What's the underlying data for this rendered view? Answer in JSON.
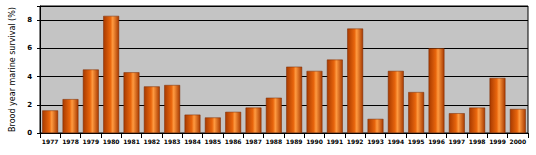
{
  "chart_data": {
    "type": "bar",
    "y_label": "Brood year marine survival (%)",
    "categories": [
      "1977",
      "1978",
      "1979",
      "1980",
      "1981",
      "1982",
      "1983",
      "1984",
      "1985",
      "1986",
      "1987",
      "1988",
      "1989",
      "1990",
      "1991",
      "1992",
      "1993",
      "1994",
      "1995",
      "1996",
      "1997",
      "1998",
      "1999",
      "2000"
    ],
    "values": [
      1.6,
      2.4,
      4.5,
      8.3,
      4.3,
      3.3,
      3.4,
      1.3,
      1.1,
      1.5,
      1.8,
      2.5,
      4.7,
      4.4,
      5.2,
      7.4,
      1.0,
      4.4,
      2.9,
      6.0,
      1.4,
      1.8,
      3.9,
      1.7
    ],
    "color": "#e8650c",
    "ylim": [
      0,
      9
    ],
    "yticks": [
      0,
      2,
      4,
      6,
      8
    ],
    "grid": true
  }
}
